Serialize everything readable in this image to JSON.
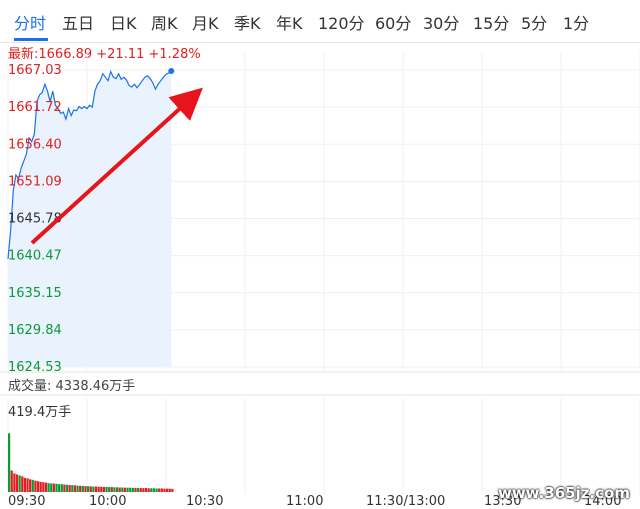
{
  "tabs": [
    {
      "label": "分时",
      "active": true
    },
    {
      "label": "五日"
    },
    {
      "label": "日K"
    },
    {
      "label": "周K"
    },
    {
      "label": "月K"
    },
    {
      "label": "季K"
    },
    {
      "label": "年K"
    },
    {
      "label": "120分"
    },
    {
      "label": "60分"
    },
    {
      "label": "30分"
    },
    {
      "label": "15分"
    },
    {
      "label": "5分"
    },
    {
      "label": "1分"
    }
  ],
  "quote": {
    "text": "最新:1666.89  +21.11  +1.28%"
  },
  "volume": {
    "label": "成交量: 4338.46万手",
    "max_label": "419.4万手"
  },
  "watermark": "www.365jz.com",
  "colors": {
    "up": "#e02020",
    "down": "#0a9a3a",
    "line": "#1a73e8",
    "fill": "#eaf3fd",
    "arrow": "#e8141b"
  },
  "chart_data": [
    {
      "type": "line",
      "title": "",
      "y_ticks": [
        "1667.03",
        "1661.72",
        "1656.40",
        "1651.09",
        "1645.78",
        "1640.47",
        "1635.15",
        "1629.84",
        "1624.53"
      ],
      "x_ticks": [
        "09:30",
        "10:00",
        "10:30",
        "11:00",
        "11:30/13:00",
        "13:30",
        "14:00"
      ],
      "ylim": [
        1624.53,
        1667.03
      ],
      "prev_close": 1645.78,
      "series": [
        {
          "x_minutes_from_open": [
            0,
            1,
            2,
            3,
            4,
            5,
            6,
            7,
            8,
            9,
            10,
            11,
            12,
            13,
            14,
            15,
            16,
            17,
            18,
            19,
            20,
            21,
            22,
            23,
            24,
            25,
            26,
            27,
            28,
            29,
            30,
            31,
            32,
            33,
            34,
            35,
            36,
            37,
            38,
            39,
            40,
            41,
            42,
            43,
            44,
            45,
            46,
            47,
            48,
            49,
            50,
            51,
            52,
            53,
            54,
            55,
            56,
            57,
            58,
            59,
            60,
            61,
            62
          ],
          "values": [
            1640.0,
            1644.0,
            1649.8,
            1652.0,
            1651.5,
            1653.0,
            1654.0,
            1655.0,
            1657.3,
            1656.8,
            1657.8,
            1662.5,
            1663.5,
            1663.8,
            1665.0,
            1664.0,
            1662.5,
            1664.0,
            1662.0,
            1661.5,
            1660.8,
            1661.0,
            1660.0,
            1661.5,
            1660.5,
            1661.3,
            1661.2,
            1661.8,
            1661.5,
            1661.8,
            1661.5,
            1662.0,
            1661.7,
            1664.0,
            1665.0,
            1665.5,
            1666.5,
            1666.0,
            1665.5,
            1666.8,
            1666.0,
            1665.8,
            1666.5,
            1665.7,
            1666.0,
            1665.6,
            1664.8,
            1664.6,
            1665.0,
            1664.5,
            1665.0,
            1665.5,
            1666.0,
            1666.2,
            1665.8,
            1665.2,
            1664.3,
            1665.0,
            1665.5,
            1666.0,
            1666.4,
            1666.6,
            1666.89
          ]
        }
      ]
    },
    {
      "type": "bar",
      "title": "",
      "ylim": [
        0,
        419.4
      ],
      "unit": "万手",
      "values": [
        300,
        110,
        95,
        90,
        85,
        80,
        72,
        70,
        65,
        62,
        58,
        55,
        52,
        50,
        48,
        45,
        44,
        43,
        42,
        40,
        40,
        38,
        37,
        36,
        35,
        34,
        33,
        32,
        31,
        30,
        30,
        29,
        28,
        28,
        27,
        27,
        26,
        26,
        25,
        25,
        24,
        24,
        23,
        23,
        22,
        22,
        22,
        21,
        21,
        21,
        20,
        20,
        20,
        19,
        19,
        19,
        18,
        18,
        18,
        17,
        17,
        17,
        16
      ],
      "up": [
        false,
        true,
        true,
        true,
        false,
        true,
        true,
        true,
        true,
        false,
        true,
        true,
        true,
        true,
        true,
        false,
        false,
        true,
        false,
        false,
        false,
        true,
        false,
        true,
        false,
        true,
        false,
        true,
        false,
        true,
        false,
        true,
        false,
        true,
        true,
        true,
        true,
        false,
        false,
        true,
        false,
        false,
        true,
        false,
        true,
        false,
        false,
        false,
        true,
        false,
        true,
        true,
        true,
        true,
        false,
        false,
        false,
        true,
        true,
        true,
        true,
        true,
        true
      ]
    }
  ]
}
